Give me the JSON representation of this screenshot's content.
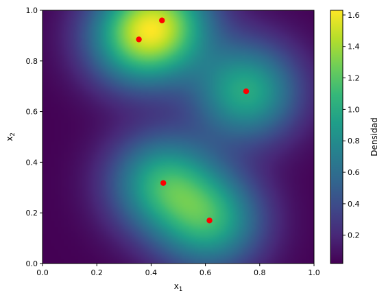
{
  "chart_data": {
    "type": "heatmap",
    "xlabel": "x",
    "xlabel_sub": "1",
    "ylabel": "x",
    "ylabel_sub": "2",
    "xlim": [
      0.0,
      1.0
    ],
    "ylim": [
      0.0,
      1.0
    ],
    "x_ticks": [
      "0.0",
      "0.2",
      "0.4",
      "0.6",
      "0.8",
      "1.0"
    ],
    "y_ticks": [
      "0.0",
      "0.2",
      "0.4",
      "0.6",
      "0.8",
      "1.0"
    ],
    "colormap": "viridis",
    "colorbar": {
      "label": "Densidad",
      "range": [
        0.02,
        1.63
      ],
      "ticks": [
        "0.2",
        "0.4",
        "0.6",
        "0.8",
        "1.0",
        "1.2",
        "1.4",
        "1.6"
      ]
    },
    "points": [
      {
        "x": 0.44,
        "y": 0.96
      },
      {
        "x": 0.355,
        "y": 0.885
      },
      {
        "x": 0.75,
        "y": 0.68
      },
      {
        "x": 0.445,
        "y": 0.318
      },
      {
        "x": 0.615,
        "y": 0.17
      }
    ],
    "point_color": "#ff0000",
    "density_peaks": [
      {
        "x": 0.42,
        "y": 0.89,
        "value": 1.63
      },
      {
        "x": 0.53,
        "y": 0.26,
        "value": 1.33
      }
    ],
    "grid": false
  }
}
